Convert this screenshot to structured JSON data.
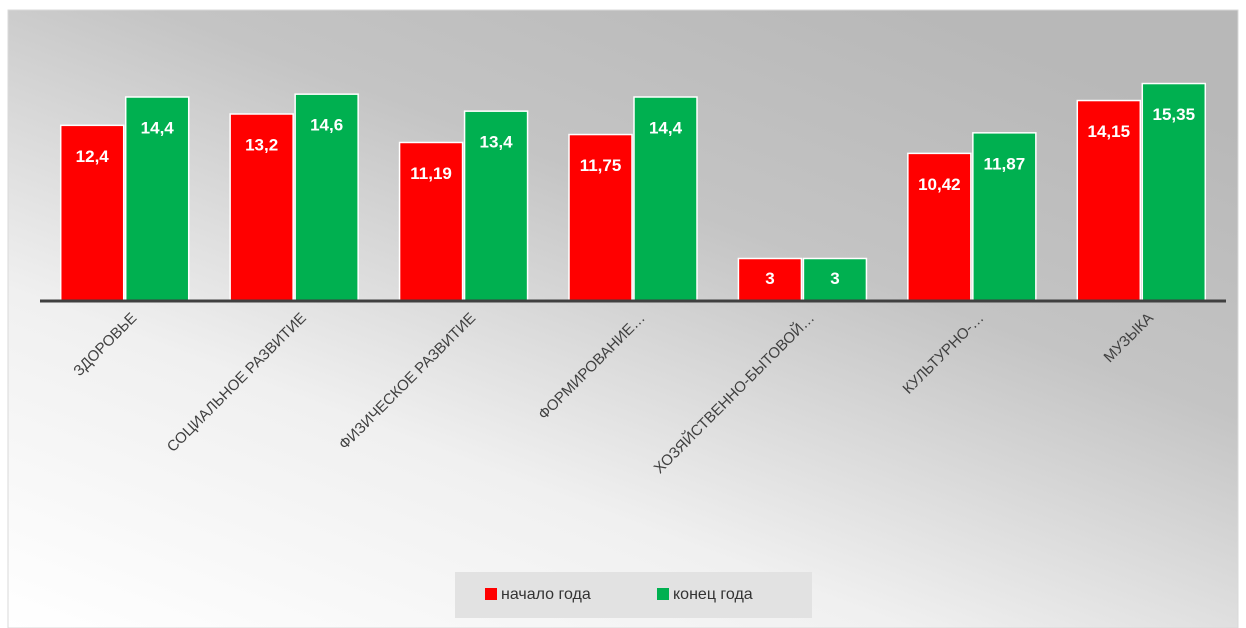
{
  "chart_data": {
    "type": "bar",
    "categories": [
      "ЗДОРОВЬЕ",
      "СОЦИАЛЬНОЕ РАЗВИТИЕ",
      "ФИЗИЧЕСКОЕ РАЗВИТИЕ",
      "ФОРМИРОВАНИЕ…",
      "ХОЗЯЙСТВЕННО-БЫТОВОЙ…",
      "КУЛЬТУРНО-…",
      "МУЗЫКА"
    ],
    "series": [
      {
        "name": "начало года",
        "color": "#ff0000",
        "values": [
          12.4,
          13.2,
          11.19,
          11.75,
          3,
          10.42,
          14.15
        ],
        "value_labels": [
          "12,4",
          "13,2",
          "11,19",
          "11,75",
          "3",
          "10,42",
          "14,15"
        ]
      },
      {
        "name": "конец года",
        "color": "#00b050",
        "values": [
          14.4,
          14.6,
          13.4,
          14.4,
          3,
          11.87,
          15.35
        ],
        "value_labels": [
          "14,4",
          "14,6",
          "13,4",
          "14,4",
          "3",
          "11,87",
          "15,35"
        ]
      }
    ],
    "ylim": [
      0,
      18
    ],
    "legend": "bottom"
  }
}
